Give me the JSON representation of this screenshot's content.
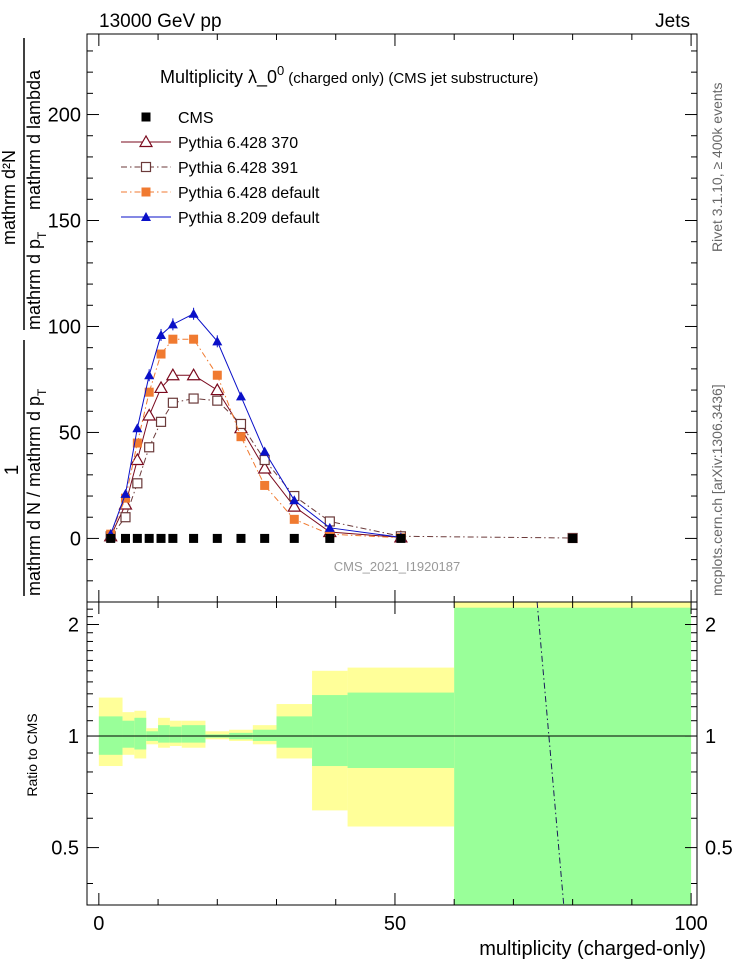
{
  "header": {
    "energy_label": "13000 GeV pp",
    "category_label": "Jets",
    "rivet_label": "Rivet 3.1.10, ≥ 400k events",
    "mcplots_label": "mcplots.cern.ch [arXiv:1306.3436]"
  },
  "chart_data": [
    {
      "type": "line",
      "title_main": "Multiplicity  λ_0",
      "title_sup": "0",
      "title_sub": "(charged only) (CMS jet substructure)",
      "analysis_label": "CMS_2021_I1920187",
      "ylabel_num": "mathrm d²N",
      "ylabel_den1": "mathrm d p",
      "ylabel_den1_sub": "T",
      "ylabel_den2": "mathrm d lambda",
      "ylabel_prefix_num": "1",
      "ylabel_prefix_den": "mathrm d N / mathrm d p",
      "ylabel_prefix_sub": "T",
      "xlim": [
        -2,
        101
      ],
      "ylim": [
        -30,
        238
      ],
      "yticks": [
        0,
        50,
        100,
        150,
        200
      ],
      "ytick_labels": [
        "0",
        "50",
        "100",
        "150",
        "200"
      ],
      "legend_position": "top-left",
      "series": [
        {
          "name": "CMS",
          "color": "#000000",
          "marker": "filled-square",
          "x": [
            2,
            4.5,
            6.5,
            8.5,
            10.5,
            12.5,
            16,
            20,
            24,
            28,
            33,
            39,
            51,
            80
          ],
          "y": [
            0,
            0,
            0,
            0,
            0,
            0,
            0,
            0,
            0,
            0,
            0,
            0,
            0,
            0
          ]
        },
        {
          "name": "Pythia 6.428 370",
          "color": "#7a0a1e",
          "marker": "open-triangle",
          "line": "solid",
          "x": [
            2,
            4.5,
            6.5,
            8.5,
            10.5,
            12.5,
            16,
            20,
            24,
            28,
            33,
            39,
            51
          ],
          "y": [
            1,
            16,
            37,
            58,
            71,
            77,
            77,
            70,
            52,
            33,
            15,
            3,
            0.5
          ]
        },
        {
          "name": "Pythia 6.428 391",
          "color": "#6b3a3a",
          "marker": "open-square",
          "line": "dashdot",
          "x": [
            2,
            4.5,
            6.5,
            8.5,
            10.5,
            12.5,
            16,
            20,
            24,
            28,
            33,
            39,
            51,
            80
          ],
          "y": [
            1,
            10,
            26,
            43,
            55,
            64,
            66,
            65,
            54,
            37,
            20,
            8,
            1,
            0.2
          ]
        },
        {
          "name": "Pythia 6.428 default",
          "color": "#f07a30",
          "marker": "filled-square",
          "line": "dashdot",
          "x": [
            2,
            4.5,
            6.5,
            8.5,
            10.5,
            12.5,
            16,
            20,
            24,
            28,
            33,
            39,
            51
          ],
          "y": [
            2,
            19,
            45,
            69,
            87,
            94,
            94,
            77,
            48,
            25,
            9,
            2,
            0.3
          ]
        },
        {
          "name": "Pythia 8.209 default",
          "color": "#0a10c8",
          "marker": "filled-triangle",
          "line": "solid",
          "x": [
            2,
            4.5,
            6.5,
            8.5,
            10.5,
            12.5,
            16,
            20,
            24,
            28,
            33,
            39,
            51
          ],
          "y": [
            2,
            21,
            52,
            77,
            96,
            101,
            106,
            93,
            67,
            41,
            18,
            5,
            0.5
          ]
        }
      ]
    },
    {
      "type": "area",
      "ylabel": "Ratio to CMS",
      "xlabel": "multiplicity (charged-only)",
      "xlim": [
        -2,
        101
      ],
      "ylim": [
        0.35,
        2.3
      ],
      "xticks": [
        0,
        50,
        100
      ],
      "xtick_labels": [
        "0",
        "50",
        "100"
      ],
      "yticks": [
        0.5,
        1,
        2
      ],
      "ytick_labels": [
        "0.5",
        "1",
        "2"
      ],
      "bins": [
        {
          "x0": 0,
          "x1": 4,
          "yellow": [
            0.83,
            1.27
          ],
          "green": [
            0.89,
            1.13
          ]
        },
        {
          "x0": 4,
          "x1": 6,
          "yellow": [
            0.89,
            1.16
          ],
          "green": [
            0.93,
            1.1
          ]
        },
        {
          "x0": 6,
          "x1": 8,
          "yellow": [
            0.87,
            1.17
          ],
          "green": [
            0.92,
            1.12
          ]
        },
        {
          "x0": 8,
          "x1": 10,
          "yellow": [
            0.95,
            1.05
          ],
          "green": [
            0.97,
            1.03
          ]
        },
        {
          "x0": 10,
          "x1": 12,
          "yellow": [
            0.93,
            1.12
          ],
          "green": [
            0.96,
            1.07
          ]
        },
        {
          "x0": 12,
          "x1": 14,
          "yellow": [
            0.94,
            1.1
          ],
          "green": [
            0.96,
            1.06
          ]
        },
        {
          "x0": 14,
          "x1": 18,
          "yellow": [
            0.93,
            1.1
          ],
          "green": [
            0.96,
            1.07
          ]
        },
        {
          "x0": 18,
          "x1": 22,
          "yellow": [
            0.98,
            1.03
          ],
          "green": [
            0.99,
            1.01
          ]
        },
        {
          "x0": 22,
          "x1": 26,
          "yellow": [
            0.97,
            1.04
          ],
          "green": [
            0.98,
            1.02
          ]
        },
        {
          "x0": 26,
          "x1": 30,
          "yellow": [
            0.95,
            1.07
          ],
          "green": [
            0.97,
            1.04
          ]
        },
        {
          "x0": 30,
          "x1": 36,
          "yellow": [
            0.87,
            1.22
          ],
          "green": [
            0.93,
            1.13
          ]
        },
        {
          "x0": 36,
          "x1": 42,
          "yellow": [
            0.63,
            1.5
          ],
          "green": [
            0.83,
            1.29
          ]
        },
        {
          "x0": 42,
          "x1": 60,
          "yellow": [
            0.57,
            1.53
          ],
          "green": [
            0.82,
            1.31
          ]
        },
        {
          "x0": 60,
          "x1": 100,
          "yellow": [
            0.35,
            2.3
          ],
          "green": [
            0.35,
            2.22
          ]
        }
      ],
      "reference_line": 1,
      "dashed_line": {
        "x": [
          74,
          78.5
        ],
        "y": [
          2.3,
          0.35
        ],
        "color": "#1a1a5a"
      }
    }
  ]
}
